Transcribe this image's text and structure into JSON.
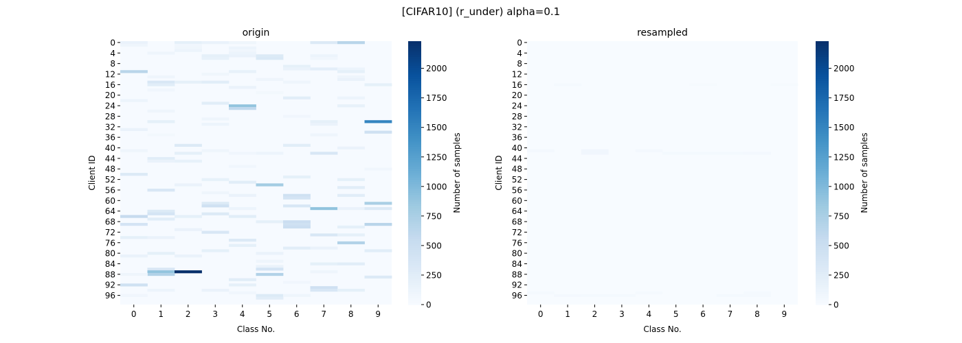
{
  "figure": {
    "suptitle": "[CIFAR10] (r_under) alpha=0.1"
  },
  "colormap": {
    "name": "Blues",
    "stops": [
      "#f7fbff",
      "#deebf7",
      "#c6dbef",
      "#9ecae1",
      "#6baed6",
      "#4292c6",
      "#2171b5",
      "#08519c",
      "#08306b"
    ]
  },
  "chart_data": [
    {
      "type": "heatmap",
      "title": "origin",
      "xlabel": "Class No.",
      "ylabel": "Client ID",
      "colorbar_label": "Number of samples",
      "vmin": 0,
      "vmax": 2230,
      "colorbar_ticks": [
        0,
        250,
        500,
        750,
        1000,
        1250,
        1500,
        1750,
        2000
      ],
      "x_ticks": [
        0,
        1,
        2,
        3,
        4,
        5,
        6,
        7,
        8,
        9
      ],
      "y_ticks": [
        0,
        4,
        8,
        12,
        16,
        20,
        24,
        28,
        32,
        36,
        40,
        44,
        48,
        52,
        56,
        60,
        64,
        68,
        72,
        76,
        80,
        84,
        88,
        92,
        96
      ],
      "n_rows": 100,
      "n_cols": 10,
      "background_value": 10,
      "cells": [
        [
          0,
          0,
          150
        ],
        [
          1,
          0,
          100
        ],
        [
          0,
          2,
          200
        ],
        [
          1,
          2,
          80
        ],
        [
          0,
          3,
          150
        ],
        [
          0,
          4,
          90
        ],
        [
          0,
          7,
          300
        ],
        [
          0,
          8,
          650
        ],
        [
          2,
          2,
          90
        ],
        [
          3,
          2,
          120
        ],
        [
          2,
          4,
          120
        ],
        [
          3,
          4,
          80
        ],
        [
          4,
          1,
          100
        ],
        [
          5,
          4,
          150
        ],
        [
          5,
          5,
          300
        ],
        [
          6,
          5,
          320
        ],
        [
          5,
          3,
          200
        ],
        [
          6,
          3,
          180
        ],
        [
          4,
          4,
          120
        ],
        [
          5,
          7,
          120
        ],
        [
          6,
          7,
          80
        ],
        [
          9,
          6,
          200
        ],
        [
          10,
          6,
          150
        ],
        [
          10,
          7,
          220
        ],
        [
          11,
          0,
          650
        ],
        [
          10,
          8,
          120
        ],
        [
          11,
          8,
          200
        ],
        [
          11,
          4,
          180
        ],
        [
          12,
          3,
          90
        ],
        [
          13,
          1,
          100
        ],
        [
          15,
          1,
          350
        ],
        [
          16,
          1,
          250
        ],
        [
          15,
          2,
          200
        ],
        [
          15,
          3,
          250
        ],
        [
          17,
          4,
          150
        ],
        [
          16,
          9,
          200
        ],
        [
          14,
          5,
          100
        ],
        [
          15,
          6,
          100
        ],
        [
          13,
          8,
          100
        ],
        [
          14,
          8,
          150
        ],
        [
          18,
          1,
          80
        ],
        [
          19,
          5,
          60
        ],
        [
          21,
          6,
          250
        ],
        [
          22,
          0,
          120
        ],
        [
          21,
          8,
          120
        ],
        [
          23,
          3,
          250
        ],
        [
          24,
          4,
          900
        ],
        [
          25,
          4,
          600
        ],
        [
          24,
          8,
          180
        ],
        [
          26,
          1,
          100
        ],
        [
          28,
          6,
          80
        ],
        [
          29,
          3,
          100
        ],
        [
          30,
          1,
          200
        ],
        [
          31,
          3,
          120
        ],
        [
          30,
          7,
          200
        ],
        [
          31,
          7,
          150
        ],
        [
          30,
          9,
          1500
        ],
        [
          33,
          0,
          150
        ],
        [
          34,
          9,
          450
        ],
        [
          35,
          7,
          100
        ],
        [
          35,
          1,
          60
        ],
        [
          39,
          2,
          300
        ],
        [
          39,
          6,
          250
        ],
        [
          40,
          8,
          150
        ],
        [
          41,
          0,
          100
        ],
        [
          41,
          3,
          100
        ],
        [
          42,
          7,
          350
        ],
        [
          42,
          2,
          200
        ],
        [
          42,
          5,
          120
        ],
        [
          42,
          4,
          80
        ],
        [
          44,
          1,
          250
        ],
        [
          45,
          1,
          150
        ],
        [
          45,
          2,
          180
        ],
        [
          47,
          4,
          80
        ],
        [
          48,
          9,
          80
        ],
        [
          50,
          0,
          300
        ],
        [
          51,
          6,
          200
        ],
        [
          52,
          8,
          200
        ],
        [
          53,
          4,
          250
        ],
        [
          52,
          3,
          180
        ],
        [
          54,
          2,
          150
        ],
        [
          54,
          5,
          800
        ],
        [
          55,
          8,
          250
        ],
        [
          56,
          1,
          350
        ],
        [
          57,
          3,
          100
        ],
        [
          58,
          6,
          450
        ],
        [
          58,
          4,
          150
        ],
        [
          58,
          8,
          250
        ],
        [
          59,
          6,
          400
        ],
        [
          61,
          3,
          300
        ],
        [
          61,
          9,
          750
        ],
        [
          62,
          3,
          450
        ],
        [
          62,
          6,
          350
        ],
        [
          63,
          7,
          900
        ],
        [
          63,
          8,
          150
        ],
        [
          63,
          4,
          120
        ],
        [
          63,
          9,
          300
        ],
        [
          64,
          1,
          300
        ],
        [
          65,
          1,
          400
        ],
        [
          65,
          3,
          300
        ],
        [
          66,
          0,
          550
        ],
        [
          66,
          2,
          200
        ],
        [
          66,
          4,
          250
        ],
        [
          67,
          1,
          250
        ],
        [
          68,
          5,
          200
        ],
        [
          69,
          0,
          400
        ],
        [
          68,
          6,
          500
        ],
        [
          69,
          6,
          450
        ],
        [
          70,
          6,
          500
        ],
        [
          69,
          9,
          650
        ],
        [
          70,
          8,
          200
        ],
        [
          71,
          2,
          150
        ],
        [
          72,
          3,
          350
        ],
        [
          73,
          7,
          350
        ],
        [
          73,
          8,
          200
        ],
        [
          74,
          0,
          200
        ],
        [
          74,
          1,
          150
        ],
        [
          75,
          4,
          300
        ],
        [
          76,
          8,
          700
        ],
        [
          77,
          4,
          200
        ],
        [
          78,
          6,
          250
        ],
        [
          78,
          7,
          150
        ],
        [
          79,
          3,
          200
        ],
        [
          79,
          9,
          250
        ],
        [
          80,
          1,
          200
        ],
        [
          80,
          5,
          150
        ],
        [
          81,
          0,
          150
        ],
        [
          81,
          2,
          150
        ],
        [
          83,
          5,
          100
        ],
        [
          84,
          7,
          200
        ],
        [
          84,
          8,
          250
        ],
        [
          85,
          5,
          150
        ],
        [
          86,
          1,
          350
        ],
        [
          87,
          1,
          900
        ],
        [
          88,
          1,
          700
        ],
        [
          87,
          2,
          2230
        ],
        [
          86,
          5,
          400
        ],
        [
          88,
          5,
          700
        ],
        [
          87,
          7,
          100
        ],
        [
          88,
          0,
          100
        ],
        [
          89,
          9,
          300
        ],
        [
          90,
          4,
          250
        ],
        [
          91,
          6,
          80
        ],
        [
          92,
          0,
          450
        ],
        [
          92,
          4,
          200
        ],
        [
          94,
          1,
          120
        ],
        [
          94,
          3,
          150
        ],
        [
          93,
          7,
          450
        ],
        [
          94,
          7,
          350
        ],
        [
          94,
          8,
          200
        ],
        [
          96,
          5,
          300
        ],
        [
          97,
          5,
          250
        ],
        [
          95,
          4,
          80
        ],
        [
          96,
          6,
          100
        ],
        [
          96,
          0,
          80
        ]
      ]
    },
    {
      "type": "heatmap",
      "title": "resampled",
      "xlabel": "Class No.",
      "ylabel": "Client ID",
      "colorbar_label": "Number of samples",
      "vmin": 0,
      "vmax": 2230,
      "colorbar_ticks": [
        0,
        250,
        500,
        750,
        1000,
        1250,
        1500,
        1750,
        2000
      ],
      "x_ticks": [
        0,
        1,
        2,
        3,
        4,
        5,
        6,
        7,
        8,
        9
      ],
      "y_ticks": [
        0,
        4,
        8,
        12,
        16,
        20,
        24,
        28,
        32,
        36,
        40,
        44,
        48,
        52,
        56,
        60,
        64,
        68,
        72,
        76,
        80,
        84,
        88,
        92,
        96
      ],
      "n_rows": 100,
      "n_cols": 10,
      "background_value": 5,
      "cells": [
        [
          16,
          1,
          30
        ],
        [
          16,
          6,
          25
        ],
        [
          16,
          9,
          25
        ],
        [
          41,
          0,
          45
        ],
        [
          41,
          2,
          80
        ],
        [
          42,
          2,
          80
        ],
        [
          41,
          4,
          45
        ],
        [
          42,
          5,
          40
        ],
        [
          42,
          6,
          40
        ],
        [
          42,
          7,
          40
        ],
        [
          42,
          8,
          45
        ],
        [
          95,
          0,
          35
        ],
        [
          96,
          1,
          45
        ],
        [
          96,
          2,
          40
        ],
        [
          96,
          3,
          40
        ],
        [
          95,
          4,
          35
        ],
        [
          96,
          7,
          40
        ],
        [
          96,
          8,
          35
        ],
        [
          95,
          8,
          30
        ]
      ]
    }
  ]
}
